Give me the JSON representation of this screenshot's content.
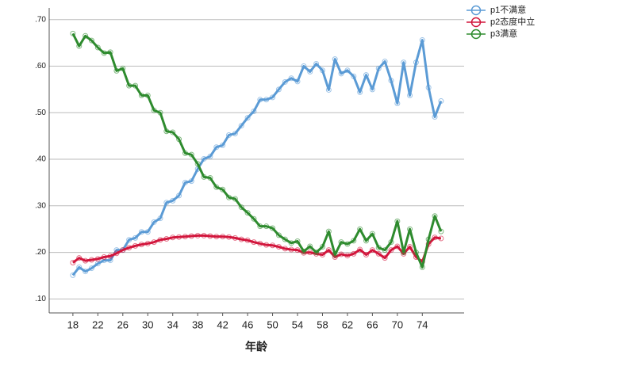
{
  "chart_data": {
    "type": "line",
    "x_label": "年龄",
    "x": [
      18,
      19,
      20,
      21,
      22,
      23,
      24,
      25,
      26,
      27,
      28,
      29,
      30,
      31,
      32,
      33,
      34,
      35,
      36,
      37,
      38,
      39,
      40,
      41,
      42,
      43,
      44,
      45,
      46,
      47,
      48,
      49,
      50,
      51,
      52,
      53,
      54,
      55,
      56,
      57,
      58,
      59,
      60,
      61,
      62,
      63,
      64,
      65,
      66,
      67,
      68,
      69,
      70,
      71,
      72,
      73,
      74,
      75,
      76,
      77
    ],
    "xlim": [
      14.2,
      80.7
    ],
    "xticks": [
      18,
      22,
      26,
      30,
      34,
      38,
      42,
      46,
      50,
      54,
      58,
      62,
      66,
      70,
      74
    ],
    "ylim": [
      0.07,
      0.725
    ],
    "yticks": [
      {
        "value": 0.1,
        "label": ".10"
      },
      {
        "value": 0.2,
        "label": ".20"
      },
      {
        "value": 0.3,
        "label": ".30"
      },
      {
        "value": 0.4,
        "label": ".40"
      },
      {
        "value": 0.5,
        "label": ".50"
      },
      {
        "value": 0.6,
        "label": ".60"
      },
      {
        "value": 0.7,
        "label": ".70"
      }
    ],
    "grid": true,
    "legend": "top-right",
    "series": [
      {
        "name": "p1不满意",
        "color": "#5b9bd5",
        "values": [
          0.151,
          0.168,
          0.159,
          0.166,
          0.176,
          0.183,
          0.183,
          0.205,
          0.205,
          0.227,
          0.231,
          0.244,
          0.244,
          0.265,
          0.273,
          0.307,
          0.311,
          0.322,
          0.35,
          0.353,
          0.379,
          0.401,
          0.406,
          0.426,
          0.43,
          0.452,
          0.455,
          0.472,
          0.489,
          0.503,
          0.528,
          0.528,
          0.533,
          0.55,
          0.566,
          0.574,
          0.567,
          0.6,
          0.588,
          0.605,
          0.591,
          0.549,
          0.615,
          0.584,
          0.591,
          0.578,
          0.544,
          0.581,
          0.55,
          0.595,
          0.61,
          0.569,
          0.52,
          0.608,
          0.537,
          0.608,
          0.656,
          0.554,
          0.491,
          0.525
        ]
      },
      {
        "name": "p2态度中立",
        "color": "#d2163c",
        "values": [
          0.178,
          0.188,
          0.182,
          0.184,
          0.186,
          0.19,
          0.192,
          0.198,
          0.205,
          0.21,
          0.214,
          0.217,
          0.219,
          0.222,
          0.227,
          0.229,
          0.232,
          0.233,
          0.234,
          0.235,
          0.236,
          0.236,
          0.235,
          0.234,
          0.234,
          0.233,
          0.231,
          0.228,
          0.226,
          0.222,
          0.219,
          0.216,
          0.215,
          0.212,
          0.208,
          0.206,
          0.205,
          0.199,
          0.2,
          0.197,
          0.195,
          0.205,
          0.19,
          0.196,
          0.193,
          0.197,
          0.206,
          0.195,
          0.205,
          0.197,
          0.188,
          0.205,
          0.213,
          0.197,
          0.212,
          0.19,
          0.18,
          0.218,
          0.232,
          0.23
        ]
      },
      {
        "name": "p3满意",
        "color": "#2e8b2e",
        "values": [
          0.67,
          0.643,
          0.665,
          0.655,
          0.64,
          0.628,
          0.63,
          0.59,
          0.595,
          0.558,
          0.558,
          0.537,
          0.537,
          0.505,
          0.5,
          0.46,
          0.458,
          0.443,
          0.413,
          0.41,
          0.39,
          0.362,
          0.36,
          0.34,
          0.335,
          0.318,
          0.315,
          0.297,
          0.285,
          0.272,
          0.256,
          0.256,
          0.252,
          0.237,
          0.228,
          0.22,
          0.224,
          0.202,
          0.213,
          0.2,
          0.212,
          0.245,
          0.195,
          0.222,
          0.218,
          0.225,
          0.25,
          0.225,
          0.24,
          0.21,
          0.205,
          0.222,
          0.267,
          0.2,
          0.25,
          0.2,
          0.168,
          0.228,
          0.278,
          0.245
        ]
      }
    ]
  }
}
